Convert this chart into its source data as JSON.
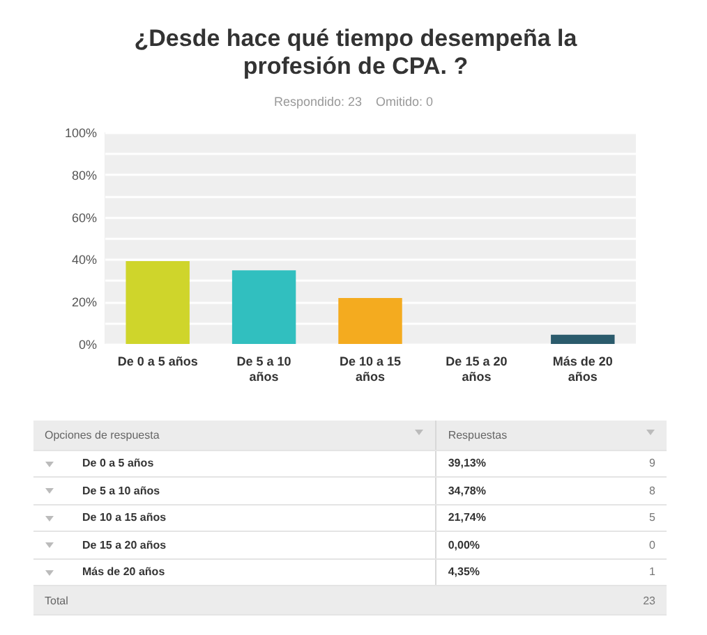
{
  "chart_data": {
    "type": "bar",
    "title": "¿Desde hace qué tiempo desempeña la profesión de CPA. ?",
    "subtitle": "Respondido: 23    Omitido: 0",
    "categories": [
      "De 0 a 5 años",
      "De 5 a 10 años",
      "De 10 a 15 años",
      "De 15 a 20 años",
      "Más de 20 años"
    ],
    "values": [
      39.13,
      34.78,
      21.74,
      0,
      4.35
    ],
    "colors": [
      "#cfd52b",
      "#31bfbf",
      "#f4ab1f",
      "#8e5ea2",
      "#2b5b6c"
    ],
    "ylim": [
      0,
      100
    ],
    "yticks": [
      {
        "value": 0,
        "label": "0%"
      },
      {
        "value": 10,
        "label": null
      },
      {
        "value": 20,
        "label": "20%"
      },
      {
        "value": 30,
        "label": null
      },
      {
        "value": 40,
        "label": "40%"
      },
      {
        "value": 50,
        "label": null
      },
      {
        "value": 60,
        "label": "60%"
      },
      {
        "value": 70,
        "label": null
      },
      {
        "value": 80,
        "label": "80%"
      },
      {
        "value": 90,
        "label": null
      },
      {
        "value": 100,
        "label": "100%"
      }
    ],
    "grid": true,
    "legend": false,
    "annotations": [
      "Opciones de respuesta",
      "Respuestas",
      "39,13%",
      "34,78%",
      "21,74%",
      "0,00%",
      "4,35%",
      "9",
      "8",
      "5",
      "0",
      "1",
      "Total",
      "23"
    ]
  }
}
